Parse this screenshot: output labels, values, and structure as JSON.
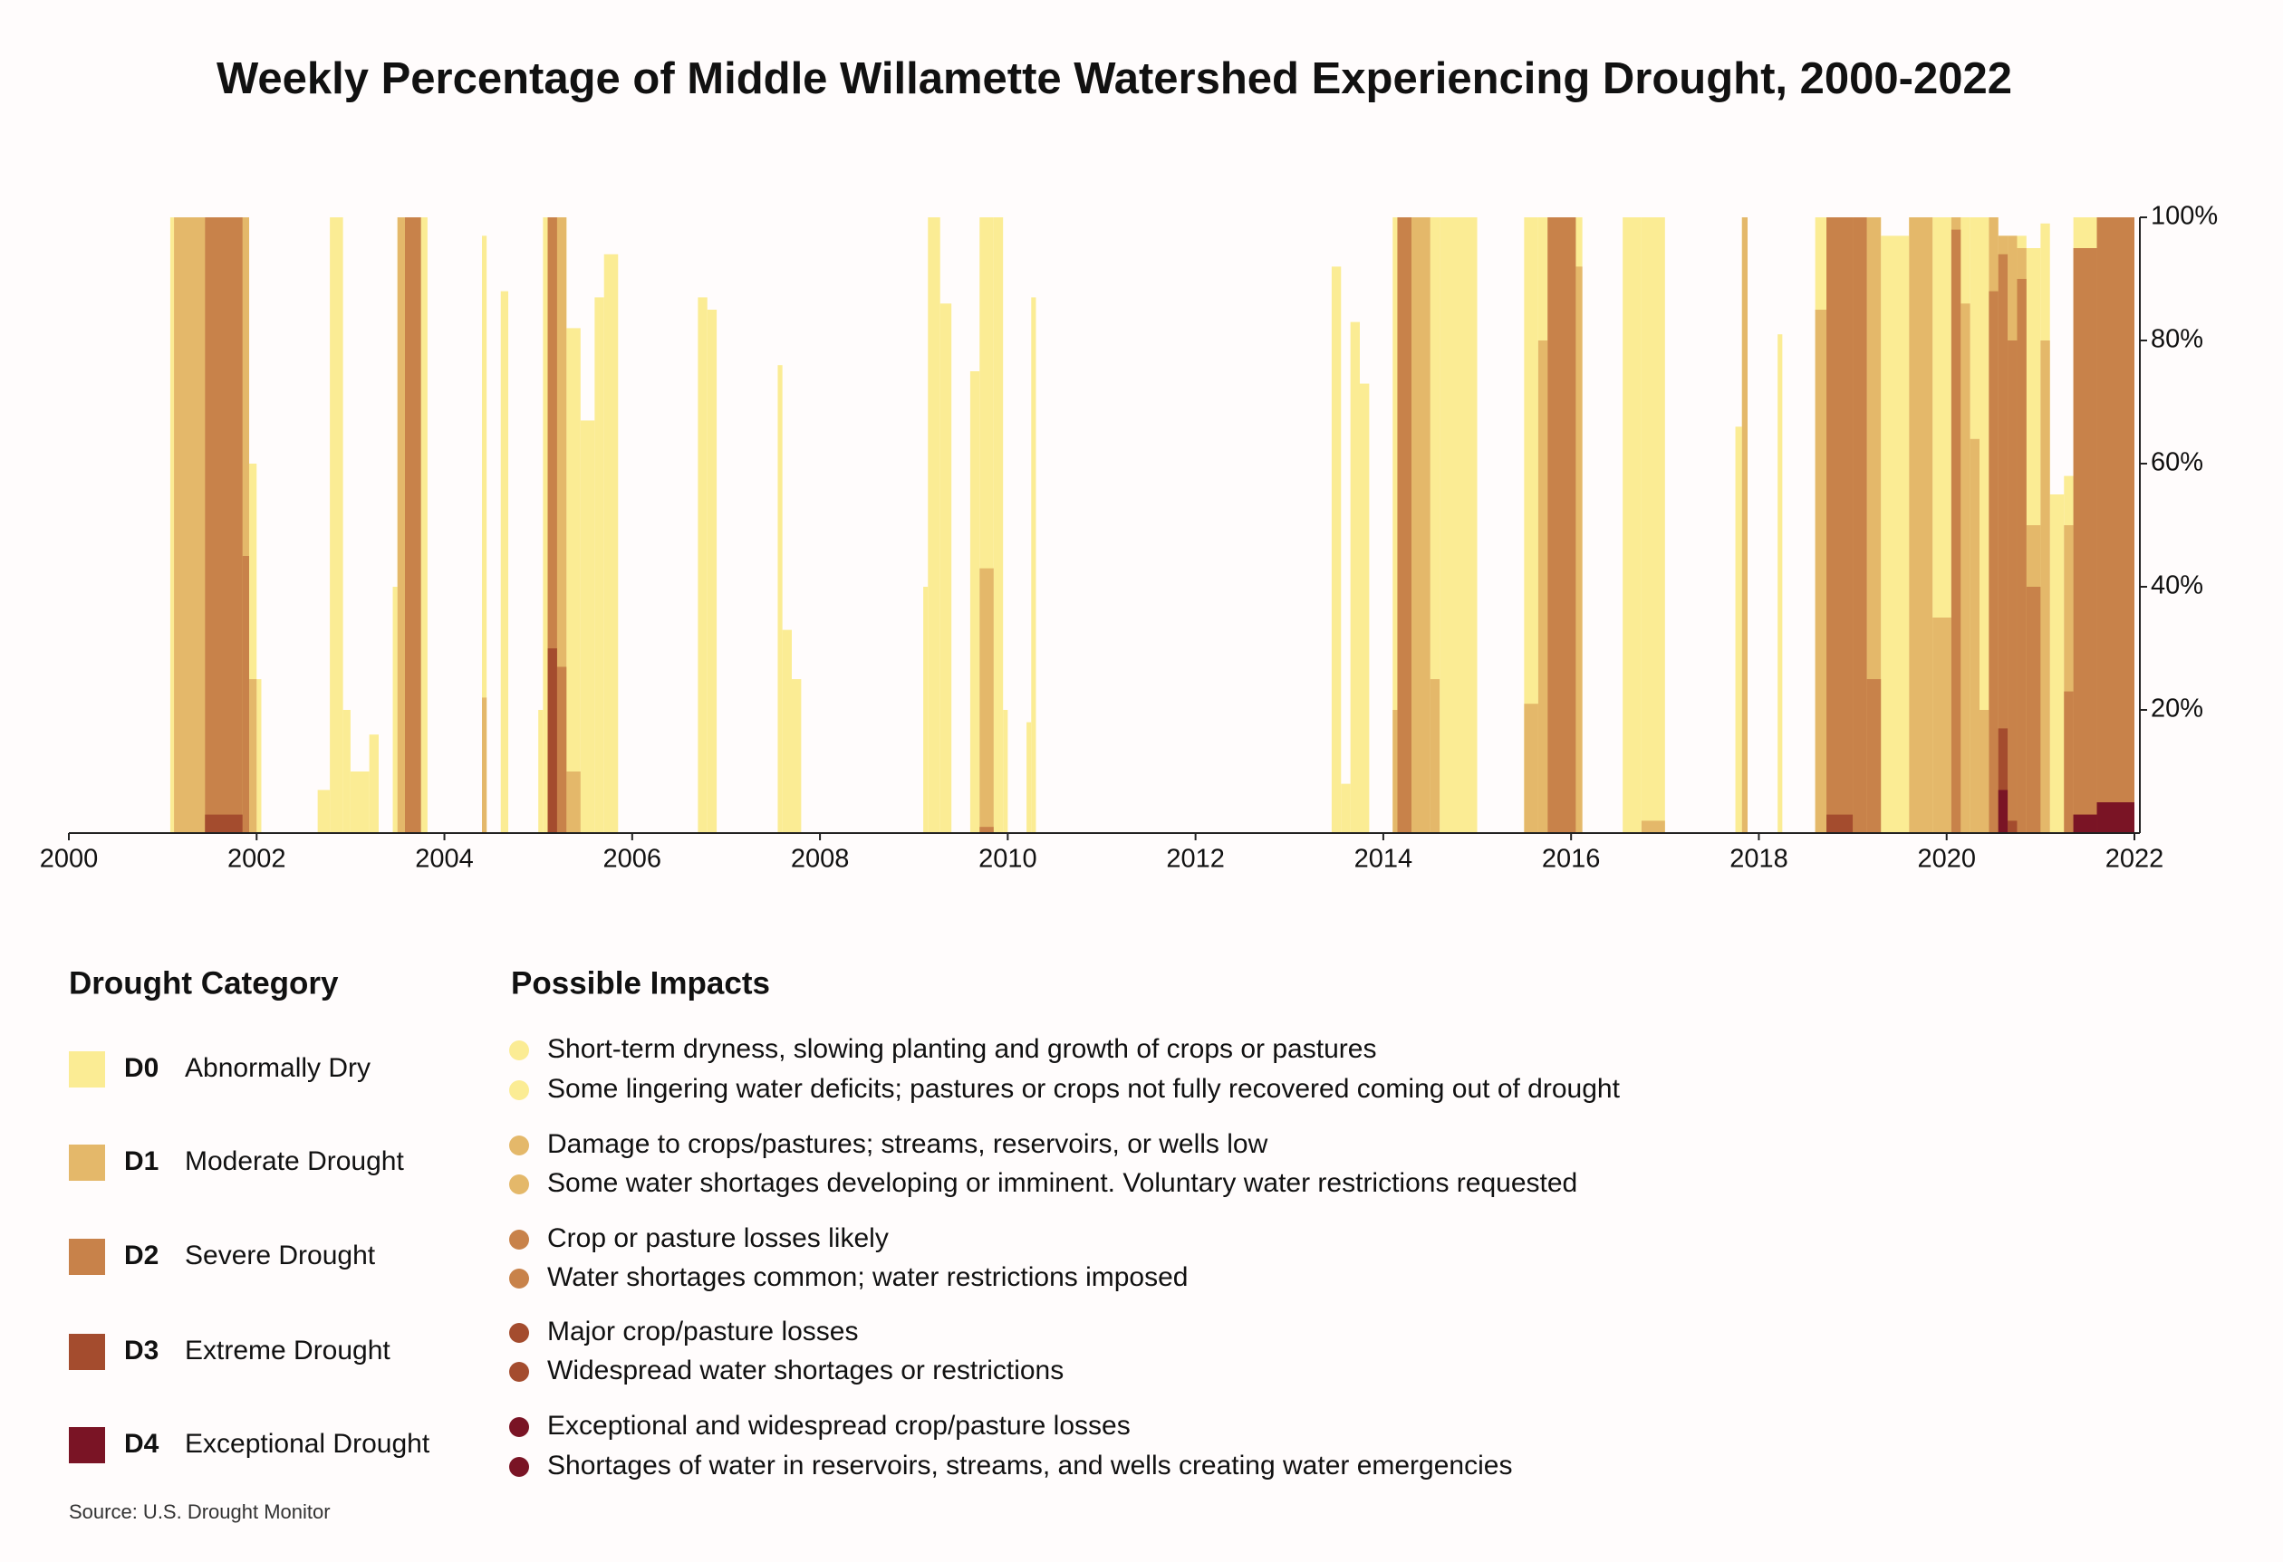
{
  "chart_data": {
    "type": "area",
    "title": "Weekly Percentage of Middle Willamette Watershed Experiencing Drought, 2000-2022",
    "legend_title": "Drought Category",
    "impacts_title": "Possible Impacts",
    "source": "Source: U.S. Drought Monitor",
    "xlim": [
      2000,
      2022
    ],
    "xticks": [
      2000,
      2002,
      2004,
      2006,
      2008,
      2010,
      2012,
      2014,
      2016,
      2018,
      2020,
      2022
    ],
    "ylim": [
      0,
      100
    ],
    "yticks": [
      {
        "value": 20,
        "label": "20%"
      },
      {
        "value": 40,
        "label": "40%"
      },
      {
        "value": 60,
        "label": "60%"
      },
      {
        "value": 80,
        "label": "80%"
      },
      {
        "value": 100,
        "label": "100%"
      }
    ],
    "x": [
      2000,
      2001.08,
      2001.12,
      2001.45,
      2001.85,
      2001.92,
      2002,
      2002.05,
      2002.65,
      2002.78,
      2002.92,
      2003,
      2003.2,
      2003.3,
      2003.45,
      2003.5,
      2003.58,
      2003.75,
      2003.82,
      2004.4,
      2004.45,
      2004.6,
      2004.68,
      2005,
      2005.05,
      2005.1,
      2005.2,
      2005.3,
      2005.45,
      2005.6,
      2005.7,
      2005.85,
      2006.7,
      2006.8,
      2006.9,
      2007.55,
      2007.6,
      2007.7,
      2007.8,
      2009.1,
      2009.15,
      2009.28,
      2009.4,
      2009.6,
      2009.7,
      2009.85,
      2009.95,
      2010,
      2010.2,
      2010.25,
      2010.3,
      2013.45,
      2013.55,
      2013.65,
      2013.75,
      2013.85,
      2014.1,
      2014.15,
      2014.3,
      2014.5,
      2014.6,
      2015,
      2015.5,
      2015.65,
      2015.75,
      2016.05,
      2016.12,
      2016.55,
      2016.75,
      2017,
      2017.75,
      2017.82,
      2017.88,
      2018.2,
      2018.25,
      2018.6,
      2018.72,
      2019,
      2019.15,
      2019.3,
      2019.6,
      2019.85,
      2020.05,
      2020.15,
      2020.25,
      2020.35,
      2020.45,
      2020.55,
      2020.65,
      2020.75,
      2020.85,
      2021,
      2021.1,
      2021.25,
      2021.35,
      2021.6,
      2022
    ],
    "series": [
      {
        "name": "D0",
        "label": "Abnormally Dry",
        "color": "#fbec94",
        "impacts": [
          "Short-term dryness, slowing planting and growth of crops or pastures",
          "Some lingering water deficits; pastures or crops not fully recovered coming out of drought"
        ],
        "values": [
          0,
          100,
          100,
          100,
          100,
          60,
          25,
          0,
          7,
          100,
          20,
          10,
          16,
          0,
          40,
          100,
          100,
          100,
          0,
          97,
          0,
          88,
          0,
          20,
          100,
          100,
          100,
          82,
          67,
          87,
          94,
          0,
          87,
          85,
          0,
          76,
          33,
          25,
          0,
          40,
          100,
          86,
          0,
          75,
          100,
          100,
          20,
          0,
          18,
          87,
          0,
          92,
          8,
          83,
          73,
          0,
          100,
          100,
          100,
          100,
          100,
          0,
          100,
          100,
          100,
          100,
          0,
          100,
          100,
          0,
          66,
          100,
          0,
          81,
          0,
          100,
          100,
          100,
          100,
          97,
          100,
          100,
          100,
          100,
          100,
          100,
          100,
          97,
          97,
          97,
          95,
          99,
          55,
          58,
          100,
          100,
          0
        ]
      },
      {
        "name": "D1",
        "label": "Moderate Drought",
        "color": "#e4b86a",
        "impacts": [
          "Damage to crops/pastures; streams, reservoirs, or wells low",
          "Some water shortages developing or imminent. Voluntary water restrictions requested"
        ],
        "values": [
          0,
          0,
          100,
          100,
          100,
          25,
          0,
          0,
          0,
          0,
          0,
          0,
          0,
          0,
          0,
          100,
          100,
          0,
          0,
          22,
          0,
          0,
          0,
          0,
          0,
          100,
          100,
          10,
          0,
          0,
          0,
          0,
          0,
          0,
          0,
          0,
          0,
          0,
          0,
          0,
          0,
          0,
          0,
          0,
          43,
          0,
          0,
          0,
          0,
          0,
          0,
          0,
          0,
          0,
          0,
          0,
          20,
          100,
          100,
          25,
          0,
          0,
          21,
          80,
          100,
          92,
          0,
          0,
          2,
          0,
          0,
          100,
          0,
          0,
          0,
          85,
          100,
          100,
          100,
          0,
          100,
          35,
          100,
          86,
          64,
          20,
          100,
          97,
          97,
          95,
          50,
          80,
          0,
          50,
          95,
          100,
          0
        ]
      },
      {
        "name": "D2",
        "label": "Severe Drought",
        "color": "#c8824a",
        "impacts": [
          "Crop or pasture losses likely",
          "Water shortages common; water restrictions imposed"
        ],
        "values": [
          0,
          0,
          0,
          100,
          45,
          0,
          0,
          0,
          0,
          0,
          0,
          0,
          0,
          0,
          0,
          0,
          100,
          0,
          0,
          0,
          0,
          0,
          0,
          0,
          0,
          100,
          27,
          0,
          0,
          0,
          0,
          0,
          0,
          0,
          0,
          0,
          0,
          0,
          0,
          0,
          0,
          0,
          0,
          0,
          1,
          0,
          0,
          0,
          0,
          0,
          0,
          0,
          0,
          0,
          0,
          0,
          0,
          100,
          0,
          0,
          0,
          0,
          0,
          0,
          100,
          0,
          0,
          0,
          0,
          0,
          0,
          0,
          0,
          0,
          0,
          0,
          100,
          100,
          25,
          0,
          0,
          0,
          98,
          0,
          0,
          0,
          88,
          94,
          80,
          90,
          40,
          0,
          0,
          23,
          95,
          100,
          0
        ]
      },
      {
        "name": "D3",
        "label": "Extreme Drought",
        "color": "#a44c2e",
        "impacts": [
          "Major crop/pasture losses",
          "Widespread water shortages or restrictions"
        ],
        "values": [
          0,
          0,
          0,
          3,
          0,
          0,
          0,
          0,
          0,
          0,
          0,
          0,
          0,
          0,
          0,
          0,
          0,
          0,
          0,
          0,
          0,
          0,
          0,
          0,
          0,
          30,
          0,
          0,
          0,
          0,
          0,
          0,
          0,
          0,
          0,
          0,
          0,
          0,
          0,
          0,
          0,
          0,
          0,
          0,
          0,
          0,
          0,
          0,
          0,
          0,
          0,
          0,
          0,
          0,
          0,
          0,
          0,
          0,
          0,
          0,
          0,
          0,
          0,
          0,
          0,
          0,
          0,
          0,
          0,
          0,
          0,
          0,
          0,
          0,
          0,
          0,
          3,
          0,
          0,
          0,
          0,
          0,
          0,
          0,
          0,
          0,
          0,
          17,
          2,
          0,
          0,
          0,
          0,
          0,
          3,
          5,
          0
        ]
      },
      {
        "name": "D4",
        "label": "Exceptional Drought",
        "color": "#7a1425",
        "impacts": [
          "Exceptional and widespread crop/pasture losses",
          "Shortages of water in reservoirs, streams, and wells creating water emergencies"
        ],
        "values": [
          0,
          0,
          0,
          0,
          0,
          0,
          0,
          0,
          0,
          0,
          0,
          0,
          0,
          0,
          0,
          0,
          0,
          0,
          0,
          0,
          0,
          0,
          0,
          0,
          0,
          0,
          0,
          0,
          0,
          0,
          0,
          0,
          0,
          0,
          0,
          0,
          0,
          0,
          0,
          0,
          0,
          0,
          0,
          0,
          0,
          0,
          0,
          0,
          0,
          0,
          0,
          0,
          0,
          0,
          0,
          0,
          0,
          0,
          0,
          0,
          0,
          0,
          0,
          0,
          0,
          0,
          0,
          0,
          0,
          0,
          0,
          0,
          0,
          0,
          0,
          0,
          0,
          0,
          0,
          0,
          0,
          0,
          0,
          0,
          0,
          0,
          0,
          7,
          0,
          0,
          0,
          0,
          0,
          0,
          3,
          5,
          0
        ]
      }
    ]
  }
}
